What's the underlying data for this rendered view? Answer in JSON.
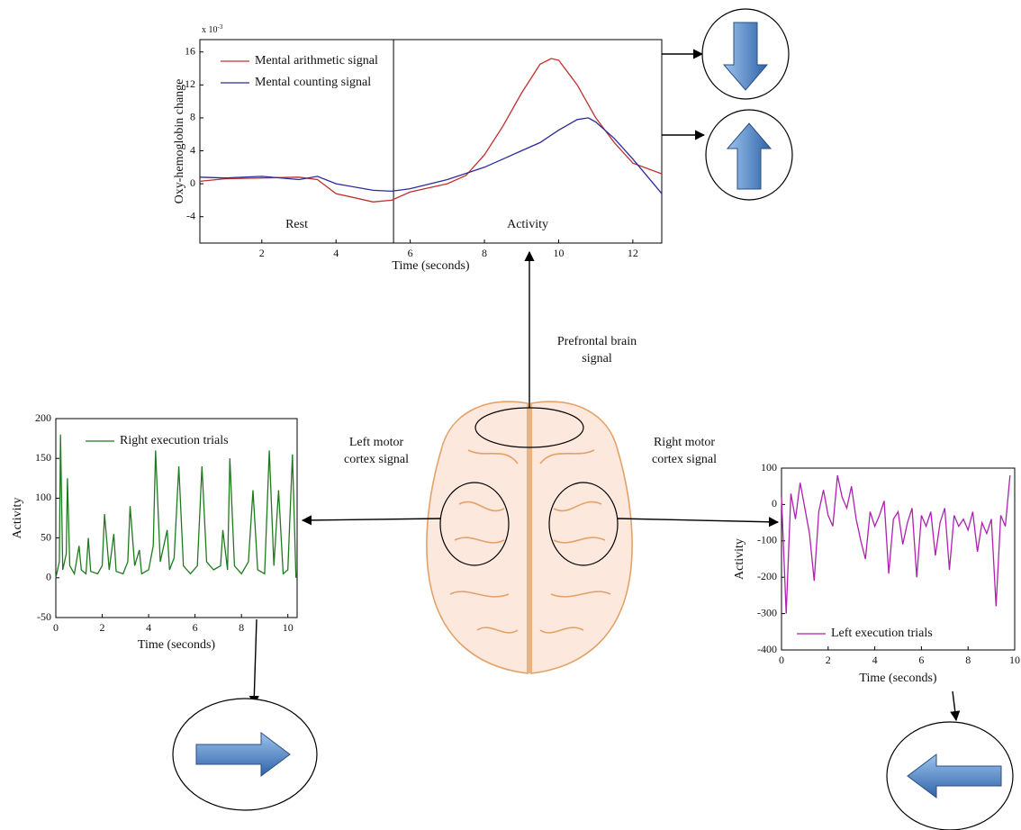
{
  "chart_data": [
    {
      "type": "line",
      "exponent": {
        "base": "x 10",
        "exp": "-3"
      },
      "y_label": "Oxy-hemoglobin change",
      "x_label": "Time (seconds)",
      "annotations": [
        "Rest",
        "Activity"
      ],
      "divider_x": 5.55,
      "xlim": [
        0.33,
        12.78
      ],
      "ylim": [
        -7.2,
        17.5
      ],
      "xticks": [
        2,
        4,
        6,
        8,
        10,
        12
      ],
      "yticks": [
        -4,
        0,
        4,
        8,
        12,
        16
      ],
      "series": [
        {
          "name": "Mental arithmetic signal",
          "color": "#c0302c",
          "x": [
            0.33,
            1,
            2,
            3,
            3.5,
            4,
            5,
            5.5,
            6,
            7,
            7.5,
            8,
            8.5,
            9,
            9.5,
            9.8,
            10,
            10.5,
            11,
            11.5,
            12,
            12.78
          ],
          "values": [
            0.3,
            0.6,
            0.7,
            0.8,
            0.5,
            -1.2,
            -2.2,
            -2.0,
            -1.0,
            0,
            1,
            3.5,
            7,
            11,
            14.5,
            15.2,
            15,
            12,
            8,
            5,
            2.5,
            1.2
          ]
        },
        {
          "name": "Mental counting signal",
          "color": "#2a2a9a",
          "x": [
            0.33,
            1,
            2,
            3,
            3.5,
            4,
            5,
            5.5,
            6,
            7,
            8,
            8.5,
            9,
            9.5,
            10,
            10.5,
            10.8,
            11,
            11.5,
            12,
            12.78
          ],
          "values": [
            0.8,
            0.7,
            0.9,
            0.5,
            0.9,
            0,
            -0.8,
            -0.9,
            -0.6,
            0.5,
            2,
            3,
            4,
            5,
            6.5,
            7.8,
            8,
            7.5,
            5.5,
            3,
            -1.2
          ]
        }
      ]
    },
    {
      "type": "line",
      "y_label": "Activity",
      "x_label": "Time (seconds)",
      "xlim": [
        0,
        10.4
      ],
      "ylim": [
        -50,
        200
      ],
      "xticks": [
        0,
        2,
        4,
        6,
        8,
        10
      ],
      "yticks": [
        -50,
        0,
        50,
        100,
        150,
        200
      ],
      "series": [
        {
          "name": "Right execution trials",
          "color": "#1f7a1f",
          "x": [
            0,
            0.15,
            0.2,
            0.3,
            0.45,
            0.5,
            0.6,
            0.8,
            1.0,
            1.1,
            1.3,
            1.4,
            1.5,
            1.8,
            2.0,
            2.1,
            2.3,
            2.5,
            2.6,
            2.9,
            3.1,
            3.2,
            3.4,
            3.6,
            3.7,
            4.0,
            4.2,
            4.3,
            4.5,
            4.8,
            4.9,
            5.1,
            5.3,
            5.5,
            5.8,
            6.1,
            6.3,
            6.5,
            6.8,
            7.1,
            7.2,
            7.4,
            7.5,
            7.7,
            8.0,
            8.3,
            8.5,
            8.7,
            9.0,
            9.2,
            9.4,
            9.6,
            9.8,
            10.0,
            10.2,
            10.35
          ],
          "values": [
            0,
            20,
            180,
            10,
            30,
            125,
            15,
            5,
            40,
            10,
            5,
            50,
            8,
            5,
            15,
            80,
            10,
            55,
            8,
            5,
            20,
            90,
            15,
            35,
            5,
            10,
            40,
            160,
            20,
            60,
            10,
            25,
            140,
            15,
            5,
            15,
            140,
            20,
            10,
            15,
            60,
            10,
            150,
            15,
            5,
            20,
            110,
            10,
            5,
            160,
            15,
            110,
            5,
            10,
            155,
            0
          ]
        }
      ]
    },
    {
      "type": "line",
      "y_label": "Activity",
      "x_label": "Time (seconds)",
      "xlim": [
        0,
        10
      ],
      "ylim": [
        -400,
        100
      ],
      "xticks": [
        0,
        2,
        4,
        6,
        8,
        10
      ],
      "yticks": [
        -400,
        -300,
        -200,
        -100,
        0,
        100
      ],
      "series": [
        {
          "name": "Left execution trials",
          "color": "#b020b0",
          "x": [
            0,
            0.2,
            0.4,
            0.6,
            0.8,
            1.0,
            1.2,
            1.4,
            1.6,
            1.8,
            2.0,
            2.2,
            2.4,
            2.6,
            2.8,
            3.0,
            3.2,
            3.4,
            3.6,
            3.8,
            4.0,
            4.2,
            4.4,
            4.6,
            4.8,
            5.0,
            5.2,
            5.4,
            5.6,
            5.8,
            6.0,
            6.2,
            6.4,
            6.6,
            6.8,
            7.0,
            7.2,
            7.4,
            7.6,
            7.8,
            8.0,
            8.2,
            8.4,
            8.6,
            8.8,
            9.0,
            9.2,
            9.4,
            9.6,
            9.8
          ],
          "values": [
            20,
            -300,
            30,
            -40,
            60,
            -10,
            -80,
            -210,
            -20,
            40,
            -30,
            -60,
            80,
            20,
            -10,
            50,
            -40,
            -100,
            -150,
            -20,
            -60,
            -30,
            10,
            -190,
            -40,
            -20,
            -110,
            -50,
            -10,
            -200,
            -30,
            -60,
            -20,
            -140,
            -50,
            -10,
            -180,
            -30,
            -60,
            -40,
            -70,
            -20,
            -130,
            -50,
            -80,
            -40,
            -280,
            -30,
            -60,
            80
          ]
        }
      ]
    }
  ],
  "labels": {
    "prefrontal": [
      "Prefrontal brain",
      "signal"
    ],
    "left_motor": [
      "Left motor",
      "cortex signal"
    ],
    "right_motor": [
      "Right motor",
      "cortex signal"
    ]
  }
}
